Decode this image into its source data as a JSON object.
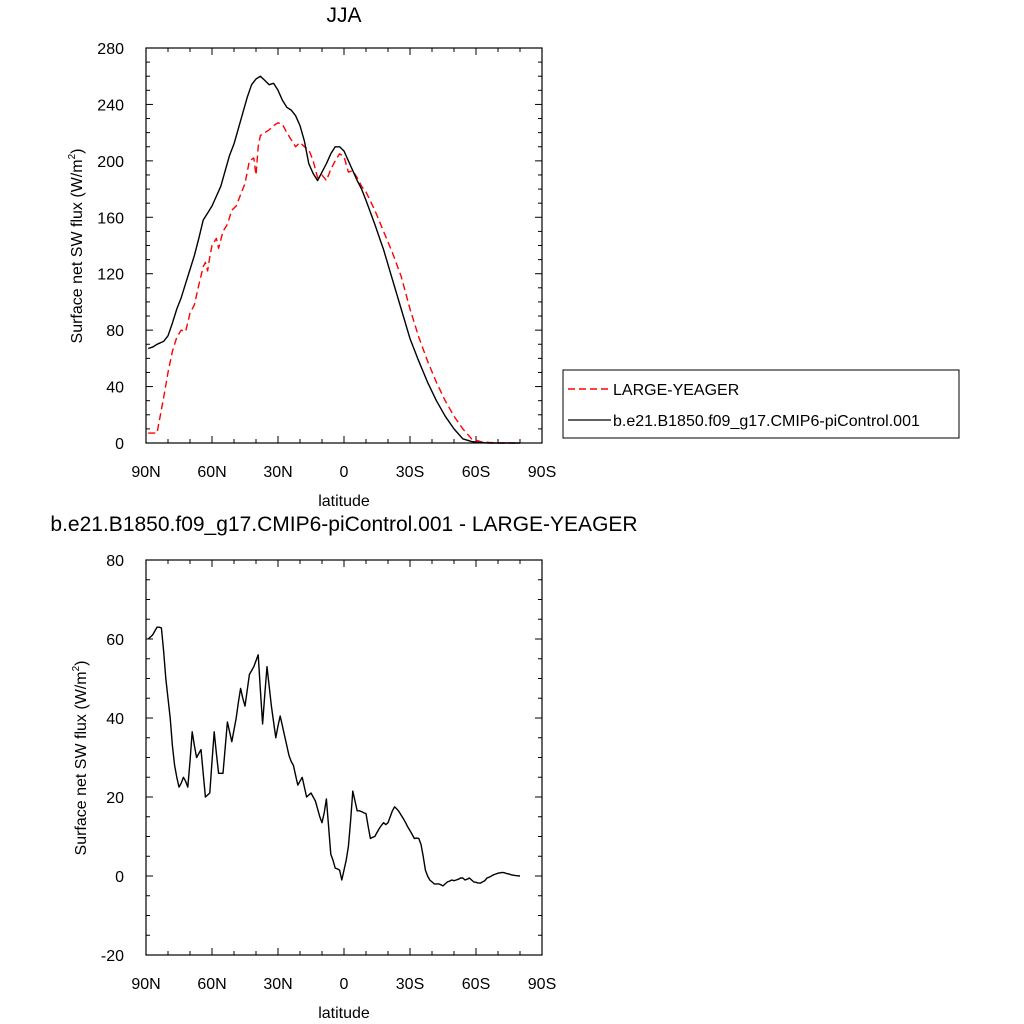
{
  "chart_data": [
    {
      "type": "line",
      "title": "JJA",
      "xlabel": "latitude",
      "ylabel_main": "Surface net SW flux (W/m",
      "ylabel_sup": "2",
      "ylabel_close": ")",
      "xlim": [
        90,
        -90
      ],
      "ylim": [
        0,
        280
      ],
      "x_ticks": [
        {
          "value": 90,
          "label": "90N"
        },
        {
          "value": 60,
          "label": "60N"
        },
        {
          "value": 30,
          "label": "30N"
        },
        {
          "value": 0,
          "label": "0"
        },
        {
          "value": -30,
          "label": "30S"
        },
        {
          "value": -60,
          "label": "60S"
        },
        {
          "value": -90,
          "label": "90S"
        }
      ],
      "y_ticks": [
        0,
        40,
        80,
        120,
        160,
        200,
        240,
        280
      ],
      "legend_position": "right",
      "series": [
        {
          "name": "LARGE-YEAGER",
          "color": "#ff0000",
          "dashed": true,
          "x": [
            89,
            85,
            82,
            80,
            78,
            76,
            74,
            72,
            70,
            68,
            66,
            64,
            63,
            62,
            61,
            60,
            58,
            57,
            55,
            53,
            51,
            49,
            47,
            45,
            43,
            41,
            40,
            39,
            38,
            36,
            34,
            32,
            30,
            28,
            26,
            24,
            22,
            20,
            18,
            16,
            14,
            12,
            10,
            8,
            6,
            4,
            2,
            0,
            -2,
            -4,
            -6,
            -8,
            -10,
            -14,
            -18,
            -22,
            -26,
            -30,
            -34,
            -38,
            -42,
            -46,
            -50,
            -54,
            -58,
            -62,
            -66,
            -68,
            -70,
            -74,
            -78,
            -80
          ],
          "y": [
            7,
            7,
            32,
            50,
            65,
            75,
            80,
            79,
            92,
            98,
            112,
            125,
            128,
            122,
            132,
            140,
            145,
            138,
            150,
            155,
            165,
            168,
            176,
            184,
            200,
            202,
            190,
            210,
            218,
            220,
            222,
            225,
            227,
            226,
            220,
            215,
            210,
            213,
            210,
            208,
            200,
            188,
            190,
            186,
            194,
            200,
            205,
            203,
            192,
            193,
            188,
            182,
            178,
            165,
            150,
            135,
            118,
            95,
            75,
            58,
            43,
            30,
            19,
            10,
            3,
            1,
            0.4,
            0.2,
            0,
            0,
            0,
            0
          ]
        },
        {
          "name": "b.e21.B1850.f09_g17.CMIP6-piControl.001",
          "color": "#000000",
          "dashed": false,
          "x": [
            89,
            87,
            85,
            82,
            80,
            78,
            76,
            74,
            72,
            70,
            68,
            66,
            64,
            62,
            60,
            58,
            56,
            54,
            52,
            50,
            48,
            46,
            44,
            42,
            40,
            38,
            36,
            34,
            32,
            30,
            28,
            26,
            24,
            22,
            20,
            18,
            16,
            14,
            12,
            10,
            8,
            6,
            4,
            2,
            0,
            -2,
            -4,
            -6,
            -8,
            -10,
            -14,
            -18,
            -22,
            -26,
            -30,
            -34,
            -38,
            -42,
            -46,
            -50,
            -54,
            -58,
            -62,
            -66,
            -70,
            -74,
            -78,
            -80
          ],
          "y": [
            67,
            68,
            70,
            72,
            76,
            85,
            95,
            103,
            113,
            123,
            133,
            145,
            158,
            163,
            168,
            175,
            182,
            193,
            204,
            212,
            223,
            234,
            245,
            254,
            258,
            260,
            257,
            254,
            255,
            250,
            243,
            238,
            236,
            232,
            225,
            214,
            198,
            191,
            186,
            192,
            198,
            205,
            210,
            210,
            207,
            200,
            193,
            186,
            180,
            172,
            155,
            137,
            116,
            95,
            74,
            58,
            43,
            30,
            19,
            10,
            3,
            1,
            0.3,
            0,
            0,
            0,
            0,
            0
          ]
        }
      ]
    },
    {
      "type": "line",
      "title": "b.e21.B1850.f09_g17.CMIP6-piControl.001 - LARGE-YEAGER",
      "xlabel": "latitude",
      "ylabel_main": "Surface net SW flux (W/m",
      "ylabel_sup": "2",
      "ylabel_close": ")",
      "xlim": [
        90,
        -90
      ],
      "ylim": [
        -20,
        80
      ],
      "x_ticks": [
        {
          "value": 90,
          "label": "90N"
        },
        {
          "value": 60,
          "label": "60N"
        },
        {
          "value": 30,
          "label": "30N"
        },
        {
          "value": 0,
          "label": "0"
        },
        {
          "value": -30,
          "label": "30S"
        },
        {
          "value": -60,
          "label": "60S"
        },
        {
          "value": -90,
          "label": "90S"
        }
      ],
      "y_ticks": [
        -20,
        0,
        20,
        40,
        60,
        80
      ],
      "series": [
        {
          "color": "#000000",
          "dashed": false,
          "x": [
            89,
            88,
            87,
            86,
            85,
            84,
            83,
            82,
            81,
            80,
            79,
            78,
            77,
            76,
            75,
            74,
            73,
            72,
            71,
            70,
            69,
            68,
            67,
            66,
            65,
            64,
            63,
            62,
            61,
            60,
            59,
            58,
            57,
            56,
            55,
            54,
            53,
            52,
            51,
            50,
            49,
            48,
            47,
            46,
            45,
            44,
            43,
            42,
            41,
            40,
            39,
            38,
            37,
            36,
            35,
            34,
            33,
            32,
            31,
            30,
            29,
            28,
            27,
            26,
            25,
            24,
            23,
            22,
            21,
            20,
            19,
            18,
            17,
            16,
            15,
            14,
            13,
            12,
            11,
            10,
            9,
            8,
            7,
            6,
            5,
            4,
            3,
            2,
            1,
            0,
            -1,
            -2,
            -3,
            -4,
            -5,
            -6,
            -7,
            -8,
            -9,
            -10,
            -11,
            -12,
            -13,
            -14,
            -15,
            -16,
            -17,
            -18,
            -19,
            -20,
            -21,
            -22,
            -23,
            -24,
            -25,
            -26,
            -27,
            -28,
            -29,
            -30,
            -31,
            -32,
            -33,
            -34,
            -35,
            -36,
            -37,
            -38,
            -39,
            -40,
            -41,
            -42,
            -43,
            -44,
            -45,
            -46,
            -47,
            -48,
            -49,
            -50,
            -51,
            -52,
            -53,
            -54,
            -55,
            -56,
            -57,
            -58,
            -59,
            -60,
            -61,
            -62,
            -63,
            -64,
            -65,
            -66,
            -67,
            -68,
            -69,
            -70,
            -71,
            -72,
            -73,
            -74,
            -75,
            -76,
            -77,
            -78,
            -79,
            -80
          ],
          "y": [
            60,
            60.5,
            61,
            62,
            63,
            63,
            62.8,
            57,
            50,
            45,
            40,
            33,
            28,
            25,
            22.5,
            23.5,
            25,
            24,
            22.5,
            29,
            36.5,
            33,
            30,
            31,
            32,
            26,
            20,
            20.5,
            21,
            29,
            36.5,
            31,
            26,
            26,
            26,
            32.5,
            39,
            36.5,
            34,
            37,
            40,
            44,
            47.5,
            45,
            43,
            47,
            51,
            52,
            53,
            54.5,
            56,
            47,
            38.5,
            46,
            53,
            48,
            43,
            39,
            35,
            38,
            40.5,
            38,
            35.5,
            33,
            30.5,
            29,
            28,
            25.5,
            23,
            24,
            25,
            22.5,
            20,
            20.5,
            21,
            20,
            19,
            17,
            15,
            13.5,
            16,
            19.5,
            12.5,
            5.5,
            4,
            2,
            1.8,
            1.5,
            -1,
            1.5,
            4,
            7.5,
            14,
            21.5,
            19,
            16.5,
            16.5,
            16.3,
            16,
            15.8,
            12.5,
            9.5,
            9.8,
            10,
            11,
            12,
            12.8,
            13.5,
            13,
            13.5,
            15,
            16.5,
            17.5,
            17,
            16.3,
            15.4,
            14.5,
            13.5,
            12.4,
            11.5,
            10.5,
            9.5,
            9.6,
            9.5,
            8,
            5,
            1.5,
            0,
            -1,
            -1.5,
            -2,
            -2,
            -2,
            -2.2,
            -2.5,
            -2,
            -1.5,
            -1.3,
            -1,
            -1.2,
            -1,
            -0.8,
            -0.5,
            -0.5,
            -1,
            -0.8,
            -0.5,
            -1,
            -1.5,
            -1.6,
            -1.8,
            -1.8,
            -1.5,
            -1.2,
            -0.5,
            -0.3,
            0,
            0.3,
            0.5,
            0.7,
            0.8,
            0.9,
            0.8,
            0.6,
            0.5,
            0.3,
            0.2,
            0.1,
            0.05,
            0
          ]
        }
      ]
    }
  ]
}
